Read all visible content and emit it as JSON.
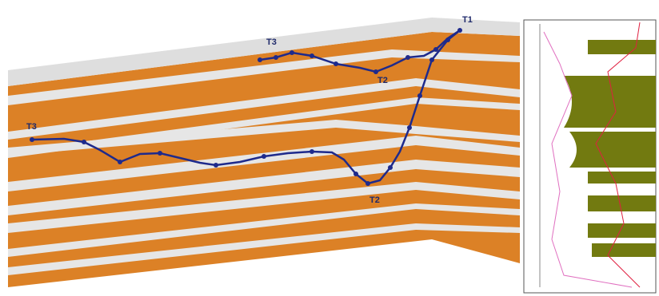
{
  "labels": [
    {
      "text": "T1"
    },
    {
      "text": "T3"
    },
    {
      "text": "T2"
    },
    {
      "text": "T3"
    },
    {
      "text": "T2"
    }
  ]
}
